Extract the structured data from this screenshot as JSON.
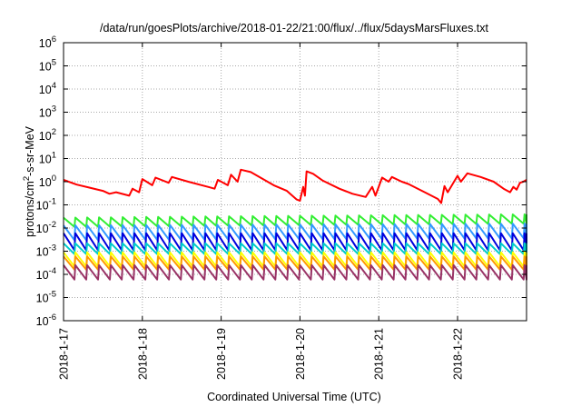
{
  "chart_data": {
    "type": "line",
    "title": "/data/run/goesPlots/archive/2018-01-22/21:00/flux/../flux/5daysMarsFluxes.txt",
    "xlabel": "Coordinated Universal Time (UTC)",
    "ylabel": {
      "base": "protons/cm",
      "sup": "2",
      "rest": "-s-sr-MeV"
    },
    "x_type": "date",
    "x_range": [
      "2018-01-17T00:00",
      "2018-01-22T21:00"
    ],
    "x_ticks": [
      "2018-1-17",
      "2018-1-18",
      "2018-1-19",
      "2018-1-20",
      "2018-1-21",
      "2018-1-22"
    ],
    "y_scale": "log",
    "y_range": [
      1e-06,
      1000000.0
    ],
    "y_ticks": [
      {
        "base": "10",
        "exp": "6"
      },
      {
        "base": "10",
        "exp": "5"
      },
      {
        "base": "10",
        "exp": "4"
      },
      {
        "base": "10",
        "exp": "3"
      },
      {
        "base": "10",
        "exp": "2"
      },
      {
        "base": "10",
        "exp": "1"
      },
      {
        "base": "10",
        "exp": "0"
      },
      {
        "base": "10",
        "exp": "-1"
      },
      {
        "base": "10",
        "exp": "-2"
      },
      {
        "base": "10",
        "exp": "-3"
      },
      {
        "base": "10",
        "exp": "-4"
      },
      {
        "base": "10",
        "exp": "-5"
      },
      {
        "base": "10",
        "exp": "-6"
      }
    ],
    "grid": true,
    "legend": "none",
    "series": [
      {
        "color": "#ff0000",
        "style": "sawtooth",
        "points": [
          [
            "2018-01-17T00:00",
            1.2
          ],
          [
            "2018-01-17T04:00",
            0.75
          ],
          [
            "2018-01-17T08:00",
            0.55
          ],
          [
            "2018-01-17T12:00",
            0.4
          ],
          [
            "2018-01-17T14:00",
            0.3
          ],
          [
            "2018-01-17T16:00",
            0.35
          ],
          [
            "2018-01-17T20:00",
            0.25
          ],
          [
            "2018-01-17T21:00",
            0.5
          ],
          [
            "2018-01-17T23:00",
            0.35
          ],
          [
            "2018-01-18T00:00",
            1.3
          ],
          [
            "2018-01-18T03:00",
            0.7
          ],
          [
            "2018-01-18T04:00",
            1.5
          ],
          [
            "2018-01-18T08:00",
            0.9
          ],
          [
            "2018-01-18T09:00",
            1.6
          ],
          [
            "2018-01-18T14:00",
            1.0
          ],
          [
            "2018-01-18T20:00",
            0.6
          ],
          [
            "2018-01-18T22:00",
            0.5
          ],
          [
            "2018-01-18T23:00",
            1.2
          ],
          [
            "2018-01-19T02:00",
            0.7
          ],
          [
            "2018-01-19T03:00",
            2.0
          ],
          [
            "2018-01-19T05:00",
            1.0
          ],
          [
            "2018-01-19T06:00",
            3.3
          ],
          [
            "2018-01-19T09:00",
            2.6
          ],
          [
            "2018-01-19T11:00",
            1.8
          ],
          [
            "2018-01-19T16:00",
            0.7
          ],
          [
            "2018-01-19T20:00",
            0.4
          ],
          [
            "2018-01-19T23:00",
            0.17
          ],
          [
            "2018-01-20T00:00",
            0.15
          ],
          [
            "2018-01-20T01:00",
            0.6
          ],
          [
            "2018-01-20T01:30",
            0.25
          ],
          [
            "2018-01-20T02:00",
            2.8
          ],
          [
            "2018-01-20T04:00",
            2.2
          ],
          [
            "2018-01-20T07:00",
            1.1
          ],
          [
            "2018-01-20T12:00",
            0.5
          ],
          [
            "2018-01-20T16:00",
            0.3
          ],
          [
            "2018-01-20T20:00",
            0.22
          ],
          [
            "2018-01-20T22:00",
            0.6
          ],
          [
            "2018-01-20T23:00",
            0.25
          ],
          [
            "2018-01-21T01:00",
            1.5
          ],
          [
            "2018-01-21T03:00",
            1.0
          ],
          [
            "2018-01-21T04:00",
            1.6
          ],
          [
            "2018-01-21T07:00",
            1.0
          ],
          [
            "2018-01-21T09:00",
            0.8
          ],
          [
            "2018-01-21T14:00",
            0.35
          ],
          [
            "2018-01-21T18:00",
            0.18
          ],
          [
            "2018-01-21T19:00",
            0.12
          ],
          [
            "2018-01-21T20:00",
            0.65
          ],
          [
            "2018-01-21T21:00",
            0.35
          ],
          [
            "2018-01-22T00:00",
            1.8
          ],
          [
            "2018-01-22T01:00",
            1.0
          ],
          [
            "2018-01-22T03:00",
            2.3
          ],
          [
            "2018-01-22T07:00",
            1.6
          ],
          [
            "2018-01-22T11:00",
            1.0
          ],
          [
            "2018-01-22T14:00",
            0.5
          ],
          [
            "2018-01-22T16:00",
            0.35
          ],
          [
            "2018-01-22T17:00",
            0.6
          ],
          [
            "2018-01-22T18:00",
            0.45
          ],
          [
            "2018-01-22T19:00",
            0.9
          ],
          [
            "2018-01-22T20:00",
            1.0
          ],
          [
            "2018-01-22T21:00",
            1.2
          ]
        ]
      },
      {
        "color": "#33ee33",
        "style": "spiky",
        "base": 0.011,
        "peak": 0.028,
        "period_hours": 3.6,
        "trend_end": 1.4
      },
      {
        "color": "#3399ff",
        "style": "spiky",
        "base": 0.003,
        "peak": 0.013,
        "period_hours": 3.6,
        "trend_end": 1.2
      },
      {
        "color": "#0000dd",
        "style": "spiky",
        "base": 0.0011,
        "peak": 0.006,
        "period_hours": 3.6,
        "trend_end": 1.0
      },
      {
        "color": "#00cccc",
        "style": "spiky",
        "base": 0.00075,
        "peak": 0.0022,
        "period_hours": 3.6,
        "trend_end": 1.0
      },
      {
        "color": "#ffff00",
        "style": "spiky",
        "base": 0.00022,
        "peak": 0.0009,
        "period_hours": 3.6,
        "trend_end": 1.0
      },
      {
        "color": "#ff9900",
        "style": "spiky",
        "base": 0.00016,
        "peak": 0.0006,
        "period_hours": 3.6,
        "trend_end": 1.0
      },
      {
        "color": "#993366",
        "style": "spiky",
        "base": 6e-05,
        "peak": 0.00025,
        "period_hours": 3.6,
        "trend_end": 1.0
      }
    ]
  }
}
